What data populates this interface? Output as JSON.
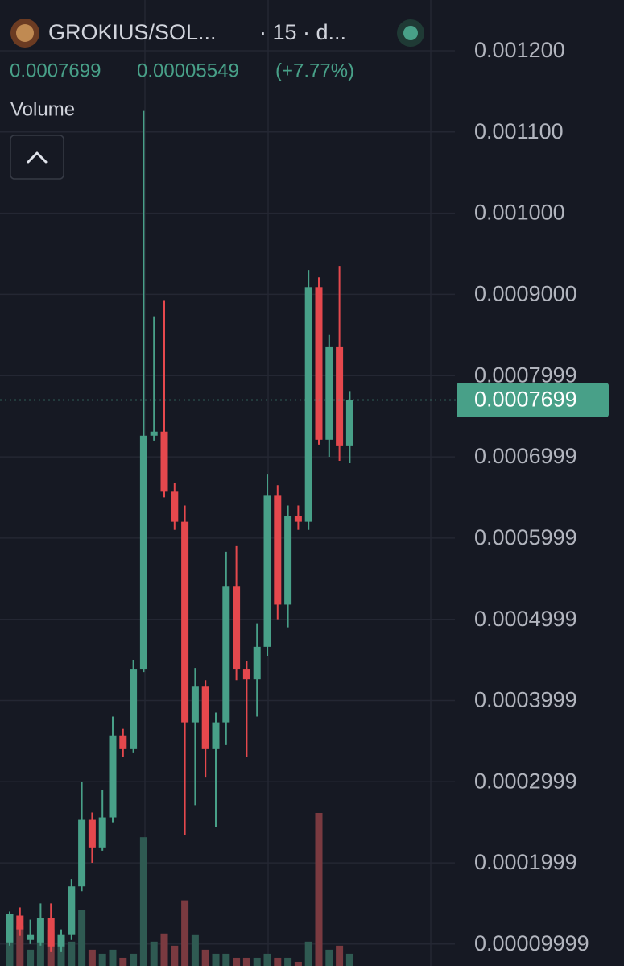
{
  "chart_data": {
    "type": "candlestick",
    "title": "GROKIUS/SOL...",
    "subtitle": "· 15 · d...",
    "change": 5.549e-05,
    "change_label": "(+7.77%)",
    "volume_label": "Volume",
    "up_color": "#48a088",
    "down_color": "#e5484d",
    "volume_up_color": "#2f5a52",
    "volume_down_color": "#7a3a40",
    "grid": true,
    "ylim": [
      7.3e-05,
      0.0012625
    ],
    "yticks": [
      {
        "value": 0.0012,
        "label": "0.001200"
      },
      {
        "value": 0.0011,
        "label": "0.001100"
      },
      {
        "value": 0.001,
        "label": "0.001000"
      },
      {
        "value": 0.0009,
        "label": "0.0009000"
      },
      0.0007999,
      0.0006999,
      0.0005999,
      0.0004999,
      0.0003999,
      0.0002999,
      0.0001999,
      9.999e-05
    ],
    "candles": [
      {
        "open": 0.000102,
        "high": 0.00014,
        "low": 9.8e-05,
        "close": 0.000137
      },
      {
        "open": 0.000135,
        "high": 0.000145,
        "low": 0.00011,
        "close": 0.000118
      },
      {
        "open": 0.000105,
        "high": 0.00013,
        "low": 0.0001,
        "close": 0.000112
      },
      {
        "open": 0.000102,
        "high": 0.00015,
        "low": 9.8e-05,
        "close": 0.000132
      },
      {
        "open": 0.000132,
        "high": 0.00015,
        "low": 9e-05,
        "close": 9.7e-05
      },
      {
        "open": 9.7e-05,
        "high": 0.000118,
        "low": 9e-05,
        "close": 0.000112
      },
      {
        "open": 0.000112,
        "high": 0.00018,
        "low": 0.000105,
        "close": 0.000171
      },
      {
        "open": 0.000171,
        "high": 0.0003,
        "low": 0.000165,
        "close": 0.000253
      },
      {
        "open": 0.000253,
        "high": 0.000262,
        "low": 0.0002,
        "close": 0.000219
      },
      {
        "open": 0.000219,
        "high": 0.00029,
        "low": 0.000215,
        "close": 0.000256
      },
      {
        "open": 0.000256,
        "high": 0.00038,
        "low": 0.00025,
        "close": 0.000357
      },
      {
        "open": 0.000357,
        "high": 0.000365,
        "low": 0.00033,
        "close": 0.00034
      },
      {
        "open": 0.00034,
        "high": 0.00045,
        "low": 0.000335,
        "close": 0.000439
      },
      {
        "open": 0.000439,
        "high": 0.001126,
        "low": 0.000435,
        "close": 0.000726
      },
      {
        "open": 0.000726,
        "high": 0.000873,
        "low": 0.00072,
        "close": 0.000731
      },
      {
        "open": 0.000731,
        "high": 0.000893,
        "low": 0.00065,
        "close": 0.000657
      },
      {
        "open": 0.000657,
        "high": 0.000668,
        "low": 0.00061,
        "close": 0.00062
      },
      {
        "open": 0.00062,
        "high": 0.00064,
        "low": 0.000234,
        "close": 0.000373
      },
      {
        "open": 0.000373,
        "high": 0.00044,
        "low": 0.000271,
        "close": 0.000417
      },
      {
        "open": 0.000417,
        "high": 0.000425,
        "low": 0.000305,
        "close": 0.00034
      },
      {
        "open": 0.00034,
        "high": 0.000385,
        "low": 0.000244,
        "close": 0.000373
      },
      {
        "open": 0.000373,
        "high": 0.000583,
        "low": 0.000345,
        "close": 0.000541
      },
      {
        "open": 0.000541,
        "high": 0.00059,
        "low": 0.000425,
        "close": 0.000439
      },
      {
        "open": 0.000439,
        "high": 0.000448,
        "low": 0.00033,
        "close": 0.000426
      },
      {
        "open": 0.000426,
        "high": 0.000495,
        "low": 0.00038,
        "close": 0.000466
      },
      {
        "open": 0.000466,
        "high": 0.000679,
        "low": 0.000455,
        "close": 0.000652
      },
      {
        "open": 0.000652,
        "high": 0.000665,
        "low": 0.0005,
        "close": 0.000518
      },
      {
        "open": 0.000518,
        "high": 0.00064,
        "low": 0.00049,
        "close": 0.000627
      },
      {
        "open": 0.000627,
        "high": 0.00064,
        "low": 0.00061,
        "close": 0.00062
      },
      {
        "open": 0.00062,
        "high": 0.00093,
        "low": 0.00061,
        "close": 0.000909
      },
      {
        "open": 0.000909,
        "high": 0.000921,
        "low": 0.000715,
        "close": 0.000721
      },
      {
        "open": 0.000721,
        "high": 0.00085,
        "low": 0.0007,
        "close": 0.000835
      },
      {
        "open": 0.000835,
        "high": 0.000935,
        "low": 0.000695,
        "close": 0.000714
      },
      {
        "open": 0.000714,
        "high": 0.000781,
        "low": 0.000692,
        "close": 0.0007699
      }
    ],
    "volume": [
      64,
      50,
      20,
      30,
      45,
      25,
      30,
      69,
      20,
      15,
      20,
      10,
      15,
      159,
      30,
      40,
      25,
      81,
      39,
      20,
      15,
      15,
      10,
      10,
      10,
      15,
      10,
      10,
      5,
      30,
      189,
      20,
      25,
      15
    ]
  }
}
